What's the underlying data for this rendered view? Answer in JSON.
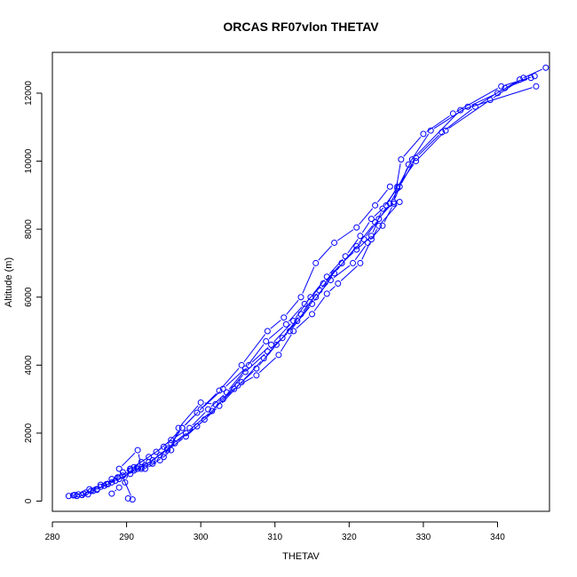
{
  "chart_data": {
    "type": "scatter",
    "title": "ORCAS RF07vlon THETAV",
    "xlabel": "THETAV",
    "ylabel": "Altitude (m)",
    "xlim": [
      280,
      347
    ],
    "ylim": [
      -300,
      13200
    ],
    "xticks": [
      280,
      290,
      300,
      310,
      320,
      330,
      340
    ],
    "yticks": [
      0,
      2000,
      4000,
      6000,
      8000,
      10000,
      12000
    ],
    "color": "#0000ff",
    "marker": "open-circle",
    "connected": true,
    "series": [
      {
        "values_xy": [
          [
            282.2,
            150
          ],
          [
            283.5,
            200
          ],
          [
            284.5,
            250
          ],
          [
            286.0,
            350
          ],
          [
            287.5,
            500
          ],
          [
            289.0,
            650
          ],
          [
            291.0,
            900
          ],
          [
            293.0,
            1150
          ],
          [
            295.5,
            1500
          ],
          [
            298.0,
            1900
          ],
          [
            300.5,
            2400
          ],
          [
            303.0,
            3000
          ],
          [
            306.0,
            3800
          ],
          [
            309.0,
            4400
          ],
          [
            312.0,
            5000
          ],
          [
            315.0,
            5800
          ],
          [
            318.0,
            6700
          ],
          [
            321.0,
            7500
          ],
          [
            323.5,
            8200
          ],
          [
            326.0,
            8800
          ],
          [
            328.0,
            9900
          ],
          [
            331.0,
            10900
          ],
          [
            336.0,
            11600
          ],
          [
            340.0,
            12000
          ],
          [
            343.0,
            12400
          ],
          [
            346.5,
            12750
          ]
        ]
      },
      {
        "values_xy": [
          [
            282.8,
            170
          ],
          [
            284.2,
            220
          ],
          [
            285.5,
            300
          ],
          [
            287.0,
            450
          ],
          [
            288.5,
            600
          ],
          [
            290.5,
            800
          ],
          [
            292.5,
            1050
          ],
          [
            294.5,
            1350
          ],
          [
            296.5,
            1700
          ],
          [
            299.5,
            2200
          ],
          [
            302.5,
            2800
          ],
          [
            305.5,
            3500
          ],
          [
            308.5,
            4200
          ],
          [
            311.0,
            4800
          ],
          [
            313.5,
            5500
          ],
          [
            316.0,
            6200
          ],
          [
            319.0,
            7000
          ],
          [
            322.0,
            7700
          ],
          [
            324.0,
            8300
          ],
          [
            325.5,
            8750
          ],
          [
            326.8,
            9250
          ],
          [
            329.0,
            10100
          ],
          [
            332.5,
            10850
          ],
          [
            337.0,
            11600
          ],
          [
            341.0,
            12150
          ],
          [
            344.5,
            12450
          ]
        ]
      },
      {
        "values_xy": [
          [
            283.0,
            180
          ],
          [
            284.0,
            180
          ],
          [
            285.2,
            300
          ],
          [
            286.5,
            420
          ],
          [
            288.0,
            550
          ],
          [
            289.5,
            750
          ],
          [
            291.5,
            950
          ],
          [
            293.5,
            1200
          ],
          [
            295.5,
            1550
          ],
          [
            298.0,
            2000
          ],
          [
            301.5,
            2650
          ],
          [
            304.5,
            3300
          ],
          [
            307.5,
            3900
          ],
          [
            310.2,
            4600
          ],
          [
            313.0,
            5300
          ],
          [
            315.5,
            6000
          ],
          [
            317.5,
            6500
          ],
          [
            320.5,
            7000
          ],
          [
            322.5,
            7600
          ],
          [
            324.5,
            8100
          ],
          [
            326.0,
            8750
          ],
          [
            327.0,
            10050
          ],
          [
            330.0,
            10800
          ],
          [
            334.0,
            11400
          ],
          [
            340.5,
            12200
          ],
          [
            345.0,
            12500
          ]
        ]
      },
      {
        "values_xy": [
          [
            283.3,
            150
          ],
          [
            284.8,
            200
          ],
          [
            286.0,
            330
          ],
          [
            287.3,
            500
          ],
          [
            288.8,
            700
          ],
          [
            290.5,
            900
          ],
          [
            292.0,
            1150
          ],
          [
            294.0,
            1450
          ],
          [
            296.0,
            1800
          ],
          [
            298.5,
            2150
          ],
          [
            301.0,
            2700
          ],
          [
            303.5,
            3200
          ],
          [
            306.5,
            4000
          ],
          [
            309.5,
            4600
          ],
          [
            312.5,
            5300
          ],
          [
            314.8,
            6000
          ],
          [
            317.0,
            6600
          ],
          [
            319.5,
            7200
          ],
          [
            321.5,
            7800
          ],
          [
            323.0,
            8300
          ],
          [
            325.0,
            8700
          ],
          [
            326.5,
            9250
          ],
          [
            329.0,
            10000
          ],
          [
            333.0,
            10900
          ],
          [
            339.0,
            11800
          ],
          [
            343.5,
            12450
          ]
        ]
      },
      {
        "values_xy": [
          [
            284.0,
            180
          ],
          [
            285.0,
            350
          ],
          [
            286.5,
            480
          ],
          [
            288.0,
            650
          ],
          [
            289.5,
            850
          ],
          [
            291.0,
            1000
          ],
          [
            292.0,
            950
          ],
          [
            290.5,
            950
          ],
          [
            293.0,
            1300
          ],
          [
            295.0,
            1600
          ],
          [
            297.5,
            2150
          ],
          [
            300.0,
            2700
          ],
          [
            303.0,
            3300
          ],
          [
            306.0,
            3900
          ],
          [
            308.8,
            4700
          ],
          [
            311.5,
            5200
          ],
          [
            314.0,
            5800
          ],
          [
            316.5,
            6400
          ],
          [
            319.0,
            7000
          ],
          [
            321.0,
            7400
          ],
          [
            323.0,
            7800
          ],
          [
            324.5,
            8600
          ],
          [
            326.5,
            9200
          ],
          [
            328.5,
            10050
          ],
          [
            335.0,
            11500
          ],
          [
            345.2,
            12200
          ]
        ]
      },
      {
        "values_xy": [
          [
            288.0,
            220
          ],
          [
            289.0,
            400
          ],
          [
            289.8,
            550
          ],
          [
            290.5,
            950
          ],
          [
            292.5,
            950
          ],
          [
            294.5,
            1200
          ],
          [
            296.0,
            1500
          ],
          [
            297.0,
            2150
          ],
          [
            300.0,
            2900
          ],
          [
            302.0,
            2850
          ],
          [
            305.0,
            3400
          ],
          [
            307.5,
            3700
          ],
          [
            310.5,
            4300
          ],
          [
            312.5,
            5000
          ],
          [
            315.0,
            5500
          ],
          [
            317.0,
            6100
          ],
          [
            318.5,
            6400
          ],
          [
            321.5,
            7000
          ],
          [
            323.0,
            7700
          ],
          [
            324.0,
            8100
          ],
          [
            326.8,
            8800
          ]
        ]
      },
      {
        "values_xy": [
          [
            290.2,
            80
          ],
          [
            290.8,
            50
          ],
          [
            289.0,
            950
          ],
          [
            291.5,
            1500
          ],
          [
            292.0,
            1000
          ],
          [
            293.5,
            1100
          ],
          [
            295.0,
            1300
          ],
          [
            296.0,
            1700
          ],
          [
            297.5,
            2150
          ],
          [
            299.5,
            2600
          ],
          [
            302.5,
            3250
          ],
          [
            305.5,
            4000
          ],
          [
            309.0,
            5000
          ],
          [
            311.2,
            5400
          ],
          [
            313.5,
            6000
          ],
          [
            315.5,
            7000
          ],
          [
            318.0,
            7600
          ],
          [
            321.0,
            8050
          ],
          [
            323.5,
            8700
          ],
          [
            325.5,
            9250
          ]
        ]
      }
    ]
  }
}
